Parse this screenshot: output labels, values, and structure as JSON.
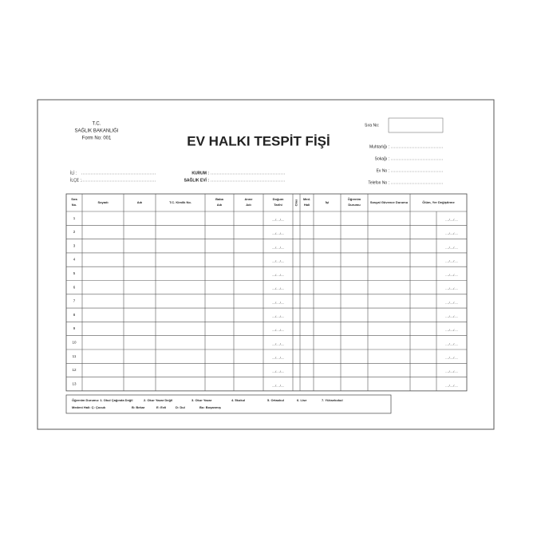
{
  "header": {
    "ministry": [
      "T.C.",
      "SAĞLIK BAKANLIĞI",
      "Form No: 001"
    ],
    "title": "EV HALKI TESPİT FİŞİ",
    "serial_label": "Sıra No:",
    "address_fields": [
      "Muhtarlığı :",
      "Sokağı :",
      "Ev No :",
      "Telefon No :"
    ],
    "location_fields": [
      "İLİ :",
      "İLÇE :"
    ],
    "institution_fields": [
      "KURUM :",
      "SAĞLIK EVİ :"
    ]
  },
  "table": {
    "columns": [
      "Sıra No.",
      "Soyadı",
      "Adı",
      "T.C. Kimlik No.",
      "Baba Adı",
      "Anne Adı",
      "Doğum Tarihi",
      "Cins",
      "Med. Hali",
      "İşi",
      "Öğrenim Durumu",
      "Sosyal Güvence Durumu",
      "Ölüm, Yer Değiştirme"
    ],
    "rows": [
      "1",
      "2",
      "3",
      "4",
      "5",
      "6",
      "7",
      "8",
      "9",
      "10",
      "11",
      "12",
      "13"
    ],
    "date_placeholder": "..../..../...."
  },
  "footer": {
    "education": [
      "Öğrenim Durumu: 1. Okul Çağında Değil",
      "2. Okur Yazar Değil",
      "3. Okur Yazar",
      "4. İlkokul",
      "5. Ortaokul",
      "6. Lise",
      "7. Yüksekokul"
    ],
    "marital": [
      "Medeni Hali: Ç: Çocuk",
      "B: Bekar",
      "E: Evli",
      "D: Dul",
      "Bo: Boşanmış"
    ]
  }
}
